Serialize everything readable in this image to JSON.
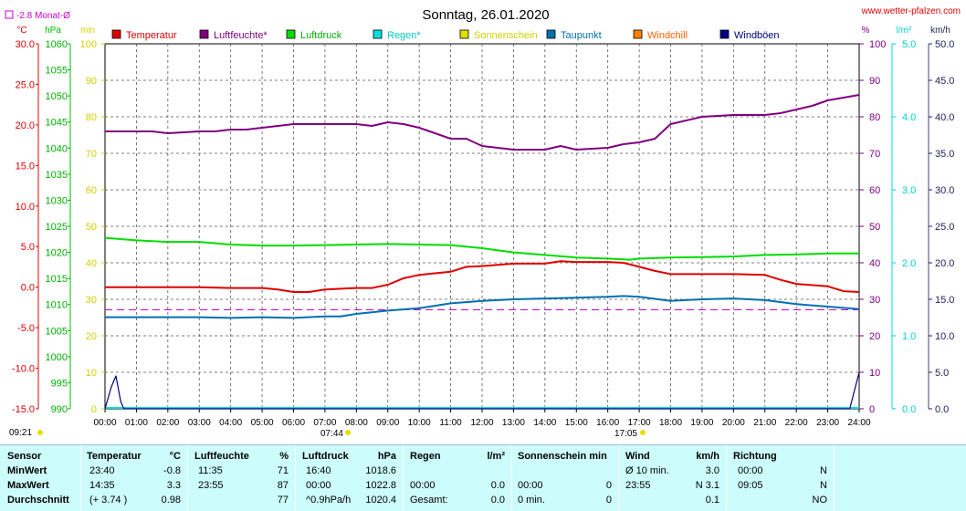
{
  "header": {
    "title": "Sonntag, 26.01.2020",
    "site": "www.wetter-pfalzen.com",
    "month_avg": "-2.8 Monat-Ø",
    "sunrise_left": "09:21",
    "sunrise_time": "07:44",
    "sunset_time": "17:05"
  },
  "colors": {
    "temperature": "#e00000",
    "humidity": "#800080",
    "pressure": "#00dd00",
    "rain": "#00e0e0",
    "sunshine": "#e0e000",
    "dewpoint": "#0070b0",
    "windchill": "#ff8000",
    "gust": "#000080",
    "table_bg": "#cdfcfc"
  },
  "units_left": [
    "°C",
    "hPa",
    "min"
  ],
  "units_right": [
    "%",
    "l/m²",
    "km/h"
  ],
  "chart_data": {
    "type": "line",
    "x_ticks": [
      "00:00",
      "01:00",
      "02:00",
      "03:00",
      "04:00",
      "05:00",
      "06:00",
      "07:00",
      "08:00",
      "09:00",
      "10:00",
      "11:00",
      "12:00",
      "13:00",
      "14:00",
      "15:00",
      "16:00",
      "17:00",
      "18:00",
      "19:00",
      "20:00",
      "21:00",
      "22:00",
      "23:00",
      "24:00"
    ],
    "xlim": [
      0,
      24
    ],
    "axes": {
      "temperature": {
        "unit": "°C",
        "ylim": [
          -15,
          30
        ],
        "ticks": [
          "30.0",
          "25.0",
          "20.0",
          "15.0",
          "10.0",
          "5.0",
          "0.0",
          "-5.0",
          "-10.0",
          "-15.0"
        ]
      },
      "pressure": {
        "unit": "hPa",
        "ylim": [
          990,
          1060
        ],
        "ticks": [
          "1060",
          "1055",
          "1050",
          "1045",
          "1040",
          "1035",
          "1030",
          "1025",
          "1020",
          "1015",
          "1010",
          "1005",
          "1000",
          "995",
          "990"
        ]
      },
      "sunshine": {
        "unit": "min",
        "ylim": [
          0,
          100
        ],
        "ticks": [
          "100",
          "90",
          "80",
          "70",
          "60",
          "50",
          "40",
          "30",
          "20",
          "10",
          "0"
        ]
      },
      "humidity": {
        "unit": "%",
        "ylim": [
          0,
          100
        ],
        "ticks": [
          "100",
          "90",
          "80",
          "70",
          "60",
          "50",
          "40",
          "30",
          "20",
          "10",
          "0"
        ]
      },
      "rain": {
        "unit": "l/m²",
        "ylim": [
          0,
          5
        ],
        "ticks": [
          "5.0",
          "4.0",
          "3.0",
          "2.0",
          "1.0",
          "0.0"
        ]
      },
      "wind": {
        "unit": "km/h",
        "ylim": [
          0,
          50
        ],
        "ticks": [
          "50.0",
          "45.0",
          "40.0",
          "35.0",
          "30.0",
          "25.0",
          "20.0",
          "15.0",
          "10.0",
          "5.0",
          "0.0"
        ]
      }
    },
    "legend": [
      "Temperatur",
      "Luftfeuchte*",
      "Luftdruck",
      "Regen*",
      "Sonnenschein",
      "Taupunkt",
      "Windchill",
      "Windböen"
    ],
    "month_avg_line": -2.8,
    "series": [
      {
        "name": "Temperatur",
        "axis": "temperature",
        "points": [
          [
            0,
            0
          ],
          [
            1,
            0
          ],
          [
            2,
            0
          ],
          [
            3,
            0
          ],
          [
            4,
            -0.1
          ],
          [
            5,
            -0.1
          ],
          [
            5.5,
            -0.3
          ],
          [
            6,
            -0.6
          ],
          [
            6.5,
            -0.6
          ],
          [
            7,
            -0.3
          ],
          [
            8,
            -0.1
          ],
          [
            8.5,
            -0.1
          ],
          [
            9,
            0.3
          ],
          [
            9.5,
            1.1
          ],
          [
            10,
            1.5
          ],
          [
            11,
            1.9
          ],
          [
            11.5,
            2.5
          ],
          [
            12,
            2.6
          ],
          [
            13,
            2.9
          ],
          [
            14,
            2.9
          ],
          [
            14.5,
            3.2
          ],
          [
            15,
            3.1
          ],
          [
            16,
            3.1
          ],
          [
            16.5,
            3.0
          ],
          [
            17,
            2.5
          ],
          [
            17.5,
            2.0
          ],
          [
            18,
            1.6
          ],
          [
            19,
            1.6
          ],
          [
            20,
            1.6
          ],
          [
            21,
            1.5
          ],
          [
            21.5,
            0.9
          ],
          [
            22,
            0.4
          ],
          [
            23,
            0.1
          ],
          [
            23.5,
            -0.5
          ],
          [
            24,
            -0.6
          ]
        ]
      },
      {
        "name": "Luftfeuchte*",
        "axis": "humidity",
        "points": [
          [
            0,
            76
          ],
          [
            1,
            76
          ],
          [
            1.5,
            76
          ],
          [
            2,
            75.5
          ],
          [
            3,
            76
          ],
          [
            3.5,
            76
          ],
          [
            4,
            76.5
          ],
          [
            4.5,
            76.5
          ],
          [
            5,
            77
          ],
          [
            6,
            78
          ],
          [
            7,
            78
          ],
          [
            8,
            78
          ],
          [
            8.5,
            77.5
          ],
          [
            9,
            78.5
          ],
          [
            9.5,
            78
          ],
          [
            10,
            77
          ],
          [
            11,
            74
          ],
          [
            11.5,
            74
          ],
          [
            12,
            72
          ],
          [
            13,
            71
          ],
          [
            14,
            71
          ],
          [
            14.5,
            72
          ],
          [
            15,
            71
          ],
          [
            16,
            71.5
          ],
          [
            16.5,
            72.5
          ],
          [
            17,
            73
          ],
          [
            17.5,
            74
          ],
          [
            18,
            78
          ],
          [
            19,
            80
          ],
          [
            20,
            80.5
          ],
          [
            21,
            80.5
          ],
          [
            21.5,
            81
          ],
          [
            22,
            82
          ],
          [
            22.5,
            83
          ],
          [
            23,
            84.5
          ],
          [
            24,
            86
          ]
        ]
      },
      {
        "name": "Luftdruck",
        "axis": "pressure",
        "points": [
          [
            0,
            1022.8
          ],
          [
            1,
            1022.3
          ],
          [
            2,
            1022.0
          ],
          [
            3,
            1022.0
          ],
          [
            4,
            1021.5
          ],
          [
            5,
            1021.3
          ],
          [
            6,
            1021.3
          ],
          [
            7,
            1021.4
          ],
          [
            8,
            1021.5
          ],
          [
            9,
            1021.6
          ],
          [
            10,
            1021.5
          ],
          [
            11,
            1021.4
          ],
          [
            12,
            1020.8
          ],
          [
            13,
            1020.0
          ],
          [
            14,
            1019.5
          ],
          [
            15,
            1019.0
          ],
          [
            16,
            1018.8
          ],
          [
            16.7,
            1018.6
          ],
          [
            17,
            1018.8
          ],
          [
            18,
            1019.0
          ],
          [
            19,
            1019.1
          ],
          [
            20,
            1019.2
          ],
          [
            21,
            1019.5
          ],
          [
            22,
            1019.6
          ],
          [
            23,
            1019.8
          ],
          [
            24,
            1019.8
          ]
        ]
      },
      {
        "name": "Taupunkt",
        "axis": "temperature",
        "points": [
          [
            0,
            -3.7
          ],
          [
            1,
            -3.7
          ],
          [
            2,
            -3.7
          ],
          [
            3,
            -3.7
          ],
          [
            4,
            -3.8
          ],
          [
            5,
            -3.7
          ],
          [
            6,
            -3.8
          ],
          [
            7,
            -3.6
          ],
          [
            7.5,
            -3.6
          ],
          [
            8,
            -3.3
          ],
          [
            9,
            -2.9
          ],
          [
            10,
            -2.6
          ],
          [
            10.5,
            -2.3
          ],
          [
            11,
            -2.0
          ],
          [
            12,
            -1.7
          ],
          [
            13,
            -1.5
          ],
          [
            14,
            -1.4
          ],
          [
            15,
            -1.3
          ],
          [
            16,
            -1.2
          ],
          [
            16.5,
            -1.1
          ],
          [
            17,
            -1.2
          ],
          [
            18,
            -1.7
          ],
          [
            19,
            -1.5
          ],
          [
            20,
            -1.4
          ],
          [
            21,
            -1.6
          ],
          [
            22,
            -2.1
          ],
          [
            23,
            -2.4
          ],
          [
            24,
            -2.7
          ]
        ]
      },
      {
        "name": "Windböen",
        "axis": "wind",
        "points": [
          [
            0,
            0
          ],
          [
            0.2,
            3
          ],
          [
            0.35,
            4.5
          ],
          [
            0.5,
            1
          ],
          [
            0.6,
            0
          ],
          [
            23.7,
            0
          ],
          [
            23.85,
            2.5
          ],
          [
            24,
            5
          ]
        ]
      }
    ]
  },
  "summary": {
    "headers": {
      "sensor": "Sensor",
      "temp": "Temperatur",
      "temp_unit": "°C",
      "hum": "Luftfeuchte",
      "hum_unit": "%",
      "press": "Luftdruck",
      "press_unit": "hPa",
      "rain": "Regen",
      "rain_unit": "l/m²",
      "sun": "Sonnenschein min",
      "wind": "Wind",
      "wind_unit": "km/h",
      "dir": "Richtung"
    },
    "rows": [
      {
        "label": "MinWert",
        "temp_time": "23:40",
        "temp_val": "-0.8",
        "hum_time": "11:35",
        "hum_val": "71",
        "press_time": "16:40",
        "press_val": "1018.6",
        "rain_time": "",
        "rain_val": "",
        "sun_time": "",
        "sun_val": "",
        "wind_time": "Ø 10 min.",
        "wind_val": "3.0",
        "dir_time": "00:00",
        "dir_val": "N"
      },
      {
        "label": "MaxWert",
        "temp_time": "14:35",
        "temp_val": "3.3",
        "hum_time": "23:55",
        "hum_val": "87",
        "press_time": "00:00",
        "press_val": "1022.8",
        "rain_time": "00:00",
        "rain_val": "0.0",
        "sun_time": "00:00",
        "sun_val": "0",
        "wind_time": "23:55",
        "wind_val": "N 3.1",
        "dir_time": "09:05",
        "dir_val": "N"
      },
      {
        "label": "Durchschnitt",
        "temp_time": "(+ 3.74 )",
        "temp_val": "0.98",
        "hum_time": "",
        "hum_val": "77",
        "press_time": "^0.9hPa/h",
        "press_val": "1020.4",
        "rain_time": "Gesamt:",
        "rain_val": "0.0",
        "sun_time": "0 min.",
        "sun_val": "0",
        "wind_time": "",
        "wind_val": "0.1",
        "dir_time": "",
        "dir_val": "NO"
      }
    ]
  }
}
